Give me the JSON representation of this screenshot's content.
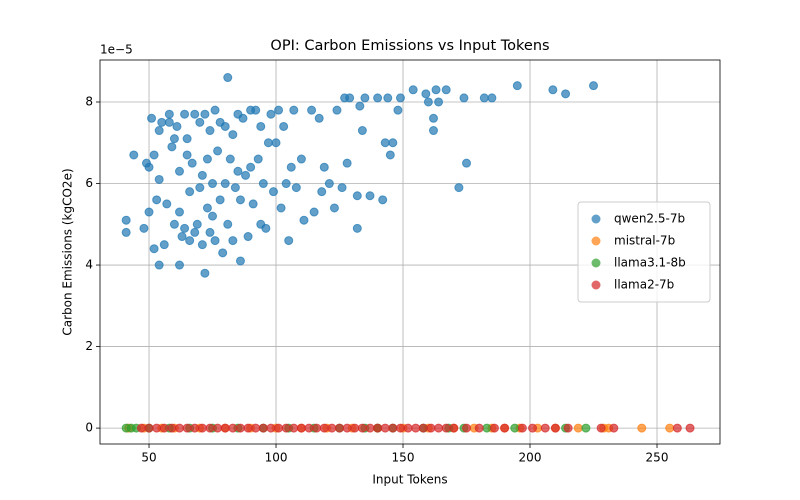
{
  "chart_data": {
    "type": "scatter",
    "title": "OPI: Carbon Emissions vs Input Tokens",
    "x_label": "Input Tokens",
    "y_label": "Carbon Emissions (kgCO2e)",
    "y_offset_text": "1e−5",
    "xlim": [
      30.7,
      274.8
    ],
    "ylim": [
      -0.39,
      9.03
    ],
    "xticks": [
      50,
      100,
      150,
      200,
      250
    ],
    "yticks": [
      0,
      2,
      4,
      6,
      8
    ],
    "grid": true,
    "legend": "center right",
    "series": [
      {
        "name": "qwen2.5-7b",
        "color": "#1f77b4",
        "x": [
          41,
          41,
          44,
          48,
          49,
          50,
          50,
          51,
          52,
          52,
          53,
          54,
          54,
          54,
          55,
          56,
          57,
          58,
          58,
          59,
          60,
          60,
          61,
          62,
          62,
          62,
          63,
          64,
          64,
          65,
          65,
          66,
          66,
          67,
          68,
          68,
          69,
          70,
          70,
          71,
          71,
          72,
          72,
          73,
          73,
          74,
          74,
          75,
          75,
          76,
          76,
          77,
          78,
          78,
          79,
          80,
          80,
          81,
          81,
          82,
          83,
          83,
          84,
          85,
          85,
          86,
          86,
          87,
          88,
          89,
          90,
          90,
          91,
          92,
          93,
          94,
          94,
          95,
          96,
          97,
          98,
          99,
          100,
          101,
          102,
          103,
          104,
          105,
          106,
          107,
          108,
          110,
          111,
          114,
          115,
          117,
          118,
          119,
          121,
          123,
          124,
          126,
          127,
          128,
          129,
          132,
          132,
          133,
          134,
          135,
          137,
          140,
          142,
          143,
          144,
          145,
          146,
          148,
          149,
          154,
          159,
          160,
          162,
          162,
          163,
          164,
          167,
          172,
          174,
          175,
          182,
          185,
          195,
          209,
          214,
          225
        ],
        "values": [
          5.1,
          4.8,
          6.7,
          4.9,
          6.5,
          5.3,
          6.4,
          7.6,
          6.7,
          4.4,
          5.6,
          7.3,
          6.1,
          4.0,
          7.5,
          4.5,
          5.5,
          7.7,
          7.5,
          6.9,
          7.1,
          5.0,
          7.4,
          4.0,
          5.3,
          6.3,
          4.7,
          7.7,
          4.9,
          7.1,
          6.7,
          4.6,
          5.8,
          6.5,
          7.7,
          4.8,
          5.0,
          5.9,
          7.5,
          6.2,
          4.5,
          3.8,
          7.7,
          5.4,
          6.6,
          7.3,
          4.8,
          6.0,
          5.2,
          7.8,
          4.6,
          6.8,
          5.6,
          7.5,
          4.3,
          6.0,
          7.4,
          8.6,
          5.0,
          6.6,
          7.2,
          4.6,
          5.9,
          7.7,
          6.3,
          4.1,
          5.6,
          7.6,
          6.2,
          4.7,
          7.8,
          6.4,
          5.5,
          7.8,
          6.6,
          5.0,
          7.4,
          6.0,
          4.9,
          7.0,
          7.7,
          5.8,
          7.0,
          7.8,
          5.4,
          7.4,
          6.0,
          4.6,
          6.4,
          7.8,
          5.9,
          6.6,
          5.1,
          7.8,
          5.3,
          7.6,
          5.8,
          6.4,
          6.0,
          5.4,
          7.8,
          5.9,
          8.1,
          6.5,
          8.1,
          5.7,
          4.9,
          7.9,
          7.3,
          8.1,
          5.7,
          8.1,
          5.6,
          7.0,
          8.1,
          6.7,
          7.0,
          7.8,
          8.1,
          8.3,
          8.2,
          8.0,
          7.6,
          7.3,
          8.3,
          8.0,
          8.3,
          5.9,
          8.1,
          6.5,
          8.1,
          8.1,
          8.4,
          8.3,
          8.2,
          8.4
        ]
      },
      {
        "name": "mistral-7b",
        "color": "#ff7f0e",
        "x": [
          42,
          48,
          55,
          60,
          70,
          80,
          90,
          100,
          110,
          120,
          130,
          140,
          150,
          160,
          170,
          178,
          185,
          190,
          196,
          203,
          210,
          219,
          229,
          231,
          244,
          255
        ],
        "values": [
          0,
          0,
          0,
          0,
          0,
          0,
          0,
          0,
          0,
          0,
          0,
          0,
          0,
          0,
          0,
          0,
          0,
          0,
          0,
          0,
          0,
          0,
          0,
          0,
          0,
          0
        ]
      },
      {
        "name": "llama3.1-8b",
        "color": "#2ca02c",
        "x": [
          41,
          43,
          45,
          50,
          58,
          66,
          75,
          85,
          95,
          105,
          115,
          125,
          135,
          140,
          146,
          158,
          168,
          174,
          183,
          194,
          214,
          222
        ],
        "values": [
          0,
          0,
          0,
          0,
          0,
          0,
          0,
          0,
          0,
          0,
          0,
          0,
          0,
          0,
          0,
          0,
          0,
          0,
          0,
          0,
          0,
          0
        ]
      },
      {
        "name": "llama2-7b",
        "color": "#d62728",
        "x": [
          47,
          50,
          53,
          56,
          59,
          62,
          65,
          68,
          71,
          74,
          77,
          80,
          83,
          86,
          89,
          92,
          95,
          98,
          101,
          104,
          107,
          110,
          113,
          116,
          119,
          122,
          125,
          128,
          131,
          134,
          137,
          140,
          143,
          146,
          149,
          152,
          155,
          158,
          161,
          164,
          167,
          170,
          175,
          180,
          186,
          190,
          197,
          201,
          206,
          210,
          215,
          228,
          233,
          258,
          263
        ],
        "values": [
          0,
          0,
          0,
          0,
          0,
          0,
          0,
          0,
          0,
          0,
          0,
          0,
          0,
          0,
          0,
          0,
          0,
          0,
          0,
          0,
          0,
          0,
          0,
          0,
          0,
          0,
          0,
          0,
          0,
          0,
          0,
          0,
          0,
          0,
          0,
          0,
          0,
          0,
          0,
          0,
          0,
          0,
          0,
          0,
          0,
          0,
          0,
          0,
          0,
          0,
          0,
          0,
          0,
          0,
          0
        ]
      }
    ]
  }
}
